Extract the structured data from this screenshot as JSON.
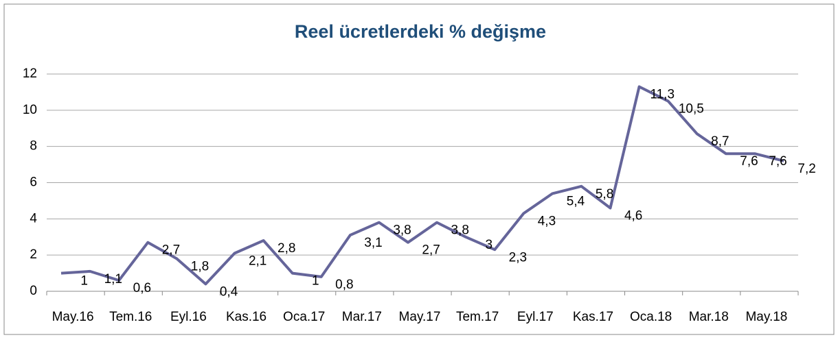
{
  "chart_data": {
    "type": "line",
    "title": "Reel ücretlerdeki % değişme",
    "categories": [
      "May.16",
      null,
      "Tem.16",
      null,
      "Eyl.16",
      null,
      "Kas.16",
      null,
      "Oca.17",
      null,
      "Mar.17",
      null,
      "May.17",
      null,
      "Tem.17",
      null,
      "Eyl.17",
      null,
      "Kas.17",
      null,
      "Oca.18",
      null,
      "Mar.18",
      null,
      "May.18",
      null
    ],
    "series": [
      {
        "color": "#65659a",
        "values": [
          1,
          1.1,
          0.6,
          2.7,
          1.8,
          0.4,
          2.1,
          2.8,
          1,
          0.8,
          3.1,
          3.8,
          2.7,
          3.8,
          3,
          2.3,
          4.3,
          5.4,
          5.8,
          4.6,
          11.3,
          10.5,
          8.7,
          7.6,
          7.6,
          7.2
        ],
        "value_labels": [
          "1",
          "1,1",
          "0,6",
          "2,7",
          "1,8",
          "0,4",
          "2,1",
          "2,8",
          "1",
          "0,8",
          "3,1",
          "3,8",
          "2,7",
          "3,8",
          "3",
          "2,3",
          "4,3",
          "5,4",
          "5,8",
          "4,6",
          "11,3",
          "10,5",
          "8,7",
          "7,6",
          "7,6",
          "7,2"
        ]
      }
    ],
    "ylim": [
      0,
      12
    ],
    "yticks": [
      0,
      2,
      4,
      6,
      8,
      10,
      12
    ],
    "grid": true
  }
}
